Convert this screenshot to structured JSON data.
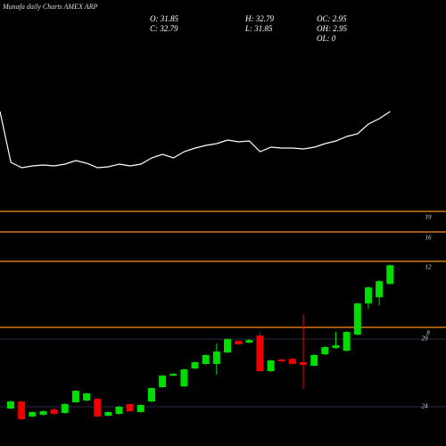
{
  "chart_data": [
    {
      "type": "line",
      "color": "#ffffff",
      "values": [
        75,
        18,
        12,
        14,
        15,
        14,
        16,
        20,
        17,
        12,
        13,
        16,
        14,
        16,
        23,
        27,
        23,
        30,
        34,
        37,
        39,
        43,
        41,
        42,
        30,
        35,
        34,
        34,
        33,
        35,
        39,
        42,
        47,
        50,
        61,
        67,
        75
      ],
      "ylim": [
        0,
        100
      ]
    },
    {
      "type": "candlestick",
      "title": "Munafa daily Charts AMEX ARP",
      "stats": [
        "O: 31.85",
        "H: 32.79",
        "OC: 2.95",
        "C: 32.79",
        "L: 31.85",
        "OH: 2.95",
        "OL: 0"
      ],
      "up_color": "#00dd00",
      "down_color": "#ee0000",
      "open": [
        23.87,
        24.39,
        23.28,
        23.41,
        23.8,
        23.54,
        24.33,
        24.46,
        24.59,
        23.34,
        23.47,
        24.2,
        23.61,
        24.39,
        25.45,
        26.3,
        25.51,
        26.83,
        27.16,
        27.16,
        28.01,
        28.87,
        28.74,
        29.26,
        26.63,
        27.49,
        27.55,
        27.29,
        27.03,
        27.88,
        28.34,
        28.14,
        29.33,
        31.63,
        32.09,
        33.08
      ],
      "high": [
        24.45,
        24.45,
        23.65,
        23.72,
        23.85,
        24.25,
        25.23,
        25.04,
        24.64,
        23.66,
        24.05,
        24.25,
        24.18,
        25.43,
        26.35,
        26.48,
        26.81,
        27.34,
        27.87,
        28.67,
        29.05,
        28.92,
        28.98,
        29.53,
        27.47,
        27.54,
        27.6,
        30.84,
        27.87,
        28.46,
        29.53,
        29.58,
        31.68,
        32.87,
        33.33,
        34.51
      ],
      "low": [
        23.82,
        23.03,
        23.23,
        23.36,
        23.42,
        23.49,
        24.28,
        24.41,
        23.23,
        23.29,
        23.42,
        23.62,
        23.56,
        24.34,
        25.4,
        26.25,
        25.46,
        26.78,
        27.11,
        26.37,
        27.96,
        28.56,
        28.69,
        26.58,
        26.58,
        27.31,
        27.11,
        25.32,
        26.98,
        27.83,
        28.29,
        28.09,
        29.28,
        31.24,
        31.5,
        33.03
      ],
      "close": [
        24.39,
        23.08,
        23.61,
        23.67,
        23.47,
        24.2,
        25.18,
        24.99,
        23.28,
        23.61,
        24.0,
        23.67,
        24.13,
        25.38,
        26.3,
        26.43,
        26.76,
        27.29,
        27.82,
        28.08,
        29.0,
        28.61,
        28.93,
        26.63,
        27.42,
        27.36,
        27.16,
        27.09,
        27.82,
        28.41,
        28.54,
        29.53,
        31.63,
        32.82,
        33.28,
        34.46
      ],
      "ylim": [
        21.1,
        35.6
      ],
      "yticks": [
        24,
        29
      ],
      "grid": true,
      "levels": [
        19,
        16,
        12,
        8
      ],
      "level_color": "#ff8c1a"
    }
  ]
}
